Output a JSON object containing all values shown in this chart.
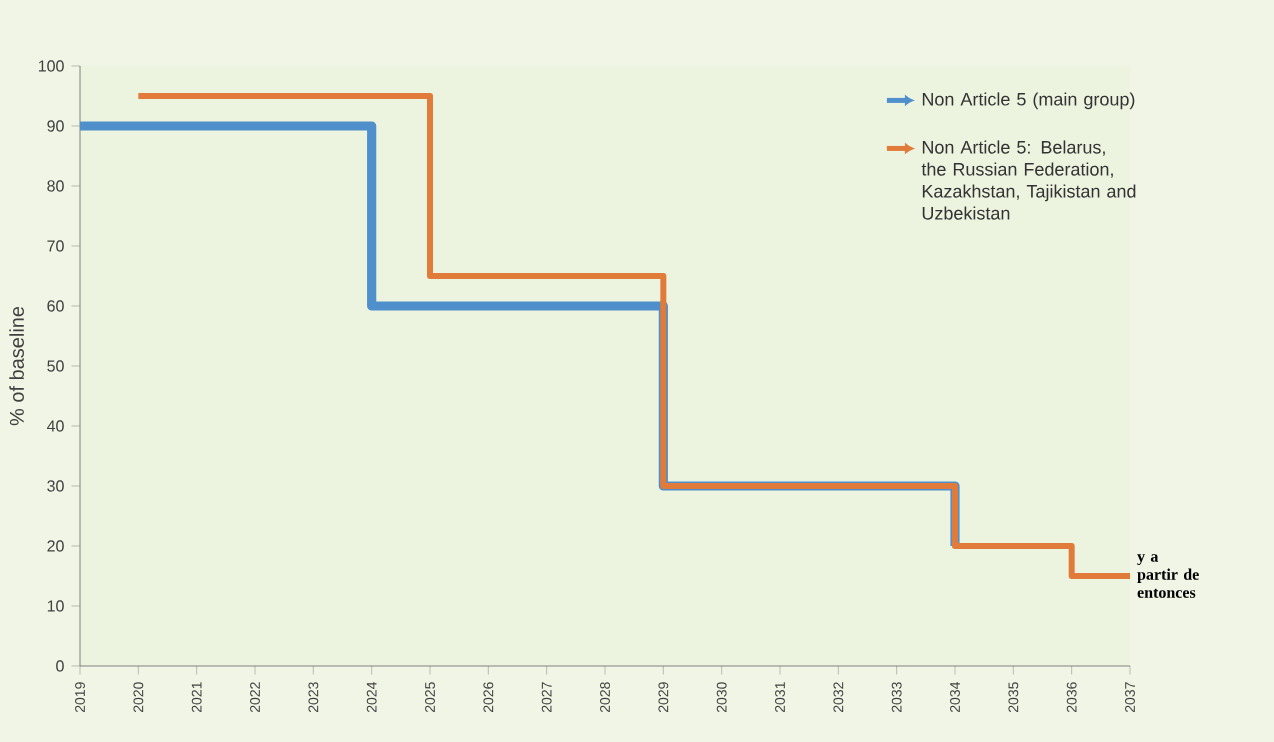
{
  "chart_data": {
    "type": "step",
    "ylabel": "% of baseline",
    "series": [
      {
        "name": "Non Article 5 (main group)",
        "color": "#4f8fcc",
        "x": [
          2019,
          2024,
          2029,
          2034
        ],
        "values": [
          90,
          60,
          30,
          20
        ]
      },
      {
        "name": "Non Article 5: Belarus, the Russian Federation, Kazakhstan, Tajikistan and Uzbekistan",
        "color": "#e07b39",
        "x": [
          2020,
          2025,
          2029,
          2034,
          2036,
          2037
        ],
        "values": [
          95,
          65,
          30,
          20,
          15,
          15
        ]
      }
    ],
    "xlim": [
      2019,
      2037
    ],
    "xticks": [
      2019,
      2020,
      2021,
      2022,
      2023,
      2024,
      2025,
      2026,
      2027,
      2028,
      2029,
      2030,
      2031,
      2032,
      2033,
      2034,
      2035,
      2036,
      2037
    ],
    "ylim": [
      0,
      100
    ],
    "yticks": [
      0,
      10,
      20,
      30,
      40,
      50,
      60,
      70,
      80,
      90,
      100
    ],
    "legend": "top right",
    "line_style": "solid",
    "annotations": [
      {
        "text": "y a partir de entonces",
        "x": 2037,
        "y": 15
      }
    ]
  }
}
